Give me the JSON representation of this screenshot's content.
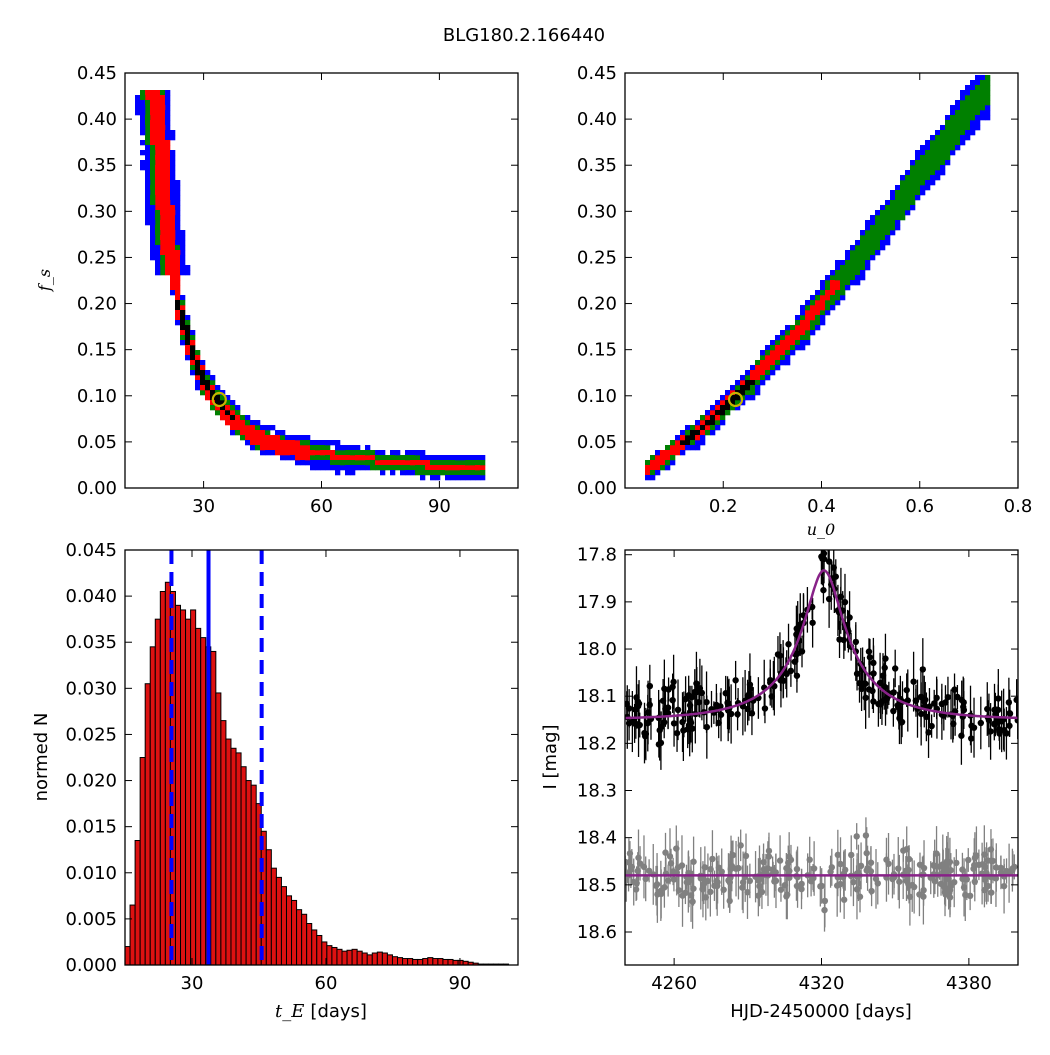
{
  "figure": {
    "title": "BLG180.2.166440"
  },
  "colors": {
    "blue": "#0000ff",
    "green": "#008000",
    "red": "#ff0000",
    "black": "#000000",
    "marker": "#c8b400",
    "bar": "#dd1111",
    "gray": "#808080",
    "model": "#882288"
  },
  "chart_data": [
    {
      "id": "ts-fs",
      "type": "heatmap",
      "title": "",
      "xlabel": "",
      "ylabel": "f_s",
      "xlim": [
        10,
        110
      ],
      "ylim": [
        0.0,
        0.45
      ],
      "xticks": [
        "30",
        "60",
        "90"
      ],
      "xtick_values": [
        30,
        60,
        90
      ],
      "yticks": [
        "0.00",
        "0.05",
        "0.10",
        "0.15",
        "0.20",
        "0.25",
        "0.30",
        "0.35",
        "0.40",
        "0.45"
      ],
      "ytick_values": [
        0.0,
        0.05,
        0.1,
        0.15,
        0.2,
        0.25,
        0.3,
        0.35,
        0.4,
        0.45
      ],
      "curve": {
        "x": [
          17.5,
          19,
          20,
          21,
          22,
          24,
          26,
          28,
          30,
          33,
          36,
          40,
          45,
          50,
          55,
          60,
          70,
          80,
          90,
          101
        ],
        "y": [
          0.43,
          0.37,
          0.31,
          0.27,
          0.24,
          0.19,
          0.16,
          0.135,
          0.115,
          0.095,
          0.08,
          0.065,
          0.052,
          0.045,
          0.04,
          0.035,
          0.03,
          0.025,
          0.022,
          0.02
        ]
      },
      "marker": {
        "x": 34,
        "y": 0.096
      }
    },
    {
      "id": "u0-fs",
      "type": "heatmap",
      "title": "",
      "xlabel": "u_0",
      "ylabel": "",
      "xlim": [
        0.0,
        0.8
      ],
      "ylim": [
        0.0,
        0.45
      ],
      "xticks": [
        "0.2",
        "0.4",
        "0.6",
        "0.8"
      ],
      "xtick_values": [
        0.2,
        0.4,
        0.6,
        0.8
      ],
      "yticks": [
        "0.00",
        "0.05",
        "0.10",
        "0.15",
        "0.20",
        "0.25",
        "0.30",
        "0.35",
        "0.40",
        "0.45"
      ],
      "ytick_values": [
        0.0,
        0.05,
        0.1,
        0.15,
        0.2,
        0.25,
        0.3,
        0.35,
        0.4,
        0.45
      ],
      "curve": {
        "x": [
          0.05,
          0.1,
          0.15,
          0.2,
          0.25,
          0.3,
          0.35,
          0.4,
          0.45,
          0.5,
          0.55,
          0.6,
          0.65,
          0.7,
          0.74
        ],
        "y": [
          0.02,
          0.04,
          0.06,
          0.085,
          0.11,
          0.14,
          0.165,
          0.2,
          0.23,
          0.265,
          0.3,
          0.34,
          0.37,
          0.41,
          0.43
        ]
      },
      "marker": {
        "x": 0.225,
        "y": 0.096
      }
    },
    {
      "id": "te-hist",
      "type": "bar",
      "title": "",
      "xlabel": "t_E",
      "xlabel_unit": "[days]",
      "ylabel": "normed N",
      "xlim": [
        15,
        103
      ],
      "ylim": [
        0.0,
        0.045
      ],
      "xticks": [
        "30",
        "60",
        "90"
      ],
      "xtick_values": [
        30,
        60,
        90
      ],
      "yticks": [
        "0.000",
        "0.005",
        "0.010",
        "0.015",
        "0.020",
        "0.025",
        "0.030",
        "0.035",
        "0.040",
        "0.045"
      ],
      "ytick_values": [
        0.0,
        0.005,
        0.01,
        0.015,
        0.02,
        0.025,
        0.03,
        0.035,
        0.04,
        0.045
      ],
      "bin_start": 15.0,
      "bin_width": 1.13,
      "values": [
        0.002,
        0.0065,
        0.0135,
        0.0225,
        0.0305,
        0.0345,
        0.0375,
        0.0405,
        0.0415,
        0.0405,
        0.039,
        0.0385,
        0.0375,
        0.0385,
        0.0365,
        0.0355,
        0.0345,
        0.034,
        0.0295,
        0.0265,
        0.0245,
        0.0235,
        0.023,
        0.0215,
        0.02,
        0.0195,
        0.0175,
        0.0145,
        0.0125,
        0.0105,
        0.0095,
        0.0085,
        0.0075,
        0.007,
        0.006,
        0.0055,
        0.0045,
        0.0038,
        0.0032,
        0.0025,
        0.0021,
        0.0019,
        0.0017,
        0.0015,
        0.0016,
        0.0017,
        0.0015,
        0.0013,
        0.0011,
        0.0013,
        0.0014,
        0.0013,
        0.0011,
        0.0009,
        0.0008,
        0.0007,
        0.0007,
        0.0006,
        0.0006,
        0.0007,
        0.0008,
        0.0007,
        0.0007,
        0.0006,
        0.0006,
        0.0005,
        0.0005,
        0.0004,
        0.0003,
        0.0002,
        0.0001,
        0.0001,
        0.0001,
        0.0001,
        0.0001,
        0.0001
      ],
      "vlines": [
        {
          "x": 33.7,
          "style": "solid"
        },
        {
          "x": 25.4,
          "style": "dashed"
        },
        {
          "x": 45.6,
          "style": "dashed"
        }
      ]
    },
    {
      "id": "lightcurve",
      "type": "scatter",
      "title": "",
      "xlabel": "HJD-2450000 [days]",
      "ylabel": "I [mag]",
      "xlim": [
        4240,
        4400
      ],
      "ylim": [
        18.67,
        17.79
      ],
      "xticks": [
        "4260",
        "4320",
        "4380"
      ],
      "xtick_values": [
        4260,
        4320,
        4380
      ],
      "yticks": [
        "17.8",
        "17.9",
        "18.0",
        "18.1",
        "18.2",
        "18.3",
        "18.4",
        "18.5",
        "18.6"
      ],
      "ytick_values": [
        17.8,
        17.9,
        18.0,
        18.1,
        18.2,
        18.3,
        18.4,
        18.5,
        18.6
      ],
      "model": {
        "t0": 4321,
        "u0": 0.225,
        "tE": 34,
        "fs": 0.096,
        "baseline": 18.15
      },
      "residual_baseline": 18.48,
      "series": [
        {
          "name": "",
          "color": "black",
          "baseline": 18.15,
          "n_points": 260,
          "scatter": 0.05,
          "error": 0.045
        },
        {
          "name": "",
          "color": "gray",
          "baseline": 18.48,
          "n_points": 260,
          "scatter": 0.045,
          "error": 0.045
        }
      ]
    }
  ]
}
